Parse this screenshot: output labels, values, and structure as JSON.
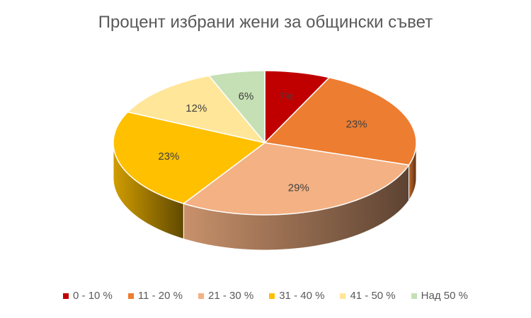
{
  "chart_data": {
    "type": "pie",
    "title": "Процент избрани жени за общински съвет",
    "categories": [
      "0 - 10 %",
      "11 - 20 %",
      "21 - 30 %",
      "31 - 40 %",
      "41 - 50 %",
      "Над 50 %"
    ],
    "values": [
      7,
      23,
      29,
      23,
      12,
      6
    ],
    "data_labels": [
      "7%",
      "23%",
      "29%",
      "23%",
      "12%",
      "6%"
    ],
    "colors": [
      "#C00000",
      "#ED7D31",
      "#F4B183",
      "#FFC000",
      "#FFE699",
      "#C5E0B4"
    ],
    "style": "3d",
    "legend_position": "bottom"
  }
}
